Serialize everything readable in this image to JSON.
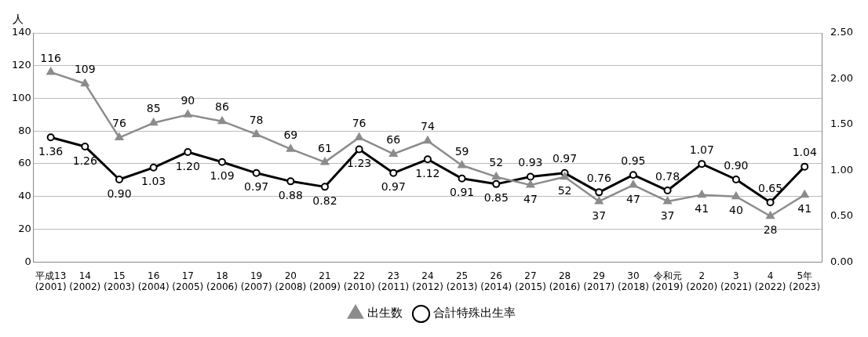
{
  "chart_data": {
    "type": "line",
    "ylabel": "人",
    "categories": [
      "平成13\n(2001)",
      "14\n(2002)",
      "15\n(2003)",
      "16\n(2004)",
      "17\n(2005)",
      "18\n(2006)",
      "19\n(2007)",
      "20\n(2008)",
      "21\n(2009)",
      "22\n(2010)",
      "23\n(2011)",
      "24\n(2012)",
      "25\n(2013)",
      "26\n(2014)",
      "27\n(2015)",
      "28\n(2016)",
      "29\n(2017)",
      "30\n(2018)",
      "令和元\n(2019)",
      "2\n(2020)",
      "3\n(2021)",
      "4\n(2022)",
      "5年\n(2023)"
    ],
    "series": [
      {
        "name": "出生数",
        "color": "#8c8c8c",
        "marker": "triangle",
        "values": [
          116,
          109,
          76,
          85,
          90,
          86,
          78,
          69,
          61,
          76,
          66,
          74,
          59,
          52,
          47,
          52,
          37,
          47,
          37,
          41,
          40,
          28,
          41
        ],
        "value_labels": [
          "116",
          "109",
          "76",
          "85",
          "90",
          "86",
          "78",
          "69",
          "61",
          "76",
          "66",
          "74",
          "59",
          "52",
          "47",
          "52",
          "37",
          "47",
          "37",
          "41",
          "40",
          "28",
          "41"
        ]
      },
      {
        "name": "合計特殊出生率",
        "color": "#000000",
        "marker": "circle",
        "axis": "y2",
        "values": [
          1.36,
          1.26,
          0.9,
          1.03,
          1.2,
          1.09,
          0.97,
          0.88,
          0.82,
          1.23,
          0.97,
          1.12,
          0.91,
          0.85,
          0.93,
          0.97,
          0.76,
          0.95,
          0.78,
          1.07,
          0.9,
          0.65,
          1.04
        ],
        "value_labels": [
          "1.36",
          "1.26",
          "0.90",
          "1.03",
          "1.20",
          "1.09",
          "0.97",
          "0.88",
          "0.82",
          "1.23",
          "0.97",
          "1.12",
          "0.91",
          "0.85",
          "0.93",
          "0.97",
          "0.76",
          "0.95",
          "0.78",
          "1.07",
          "0.90",
          "0.65",
          "1.04"
        ]
      }
    ],
    "ylim": [
      0,
      140
    ],
    "yticks": [
      0,
      20,
      40,
      60,
      80,
      100,
      120,
      140
    ],
    "y2lim": [
      0,
      2.5
    ],
    "y2ticks": [
      {
        "value": 0,
        "label": "0.00"
      },
      {
        "value": 0.5,
        "label": "0.50"
      },
      {
        "value": 1,
        "label": "1.00"
      },
      {
        "value": 1.5,
        "label": "1.50"
      },
      {
        "value": 2,
        "label": "2.00"
      },
      {
        "value": 2.5,
        "label": "2.50"
      }
    ],
    "grid": "y",
    "legend": "bottom",
    "line_style": "solid"
  }
}
